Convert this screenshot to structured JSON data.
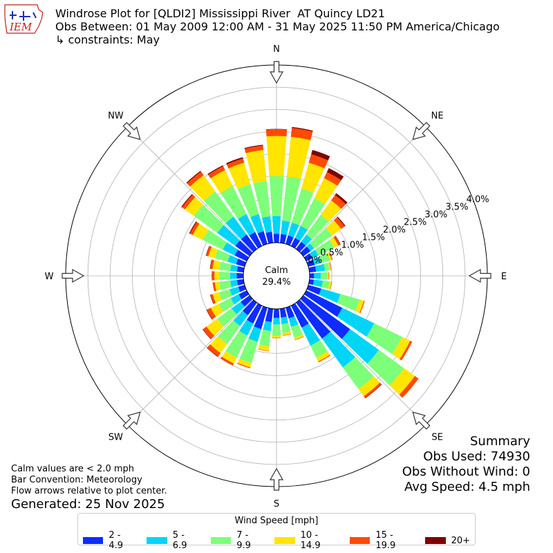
{
  "header": {
    "title": "Windrose Plot for [QLDI2] Mississippi River  AT Quincy LD21",
    "obs_between": "Obs Between: 01 May 2009 12:00 AM - 31 May 2025 11:50 PM America/Chicago",
    "constraints": "↳ constraints: May",
    "logo_text": "IEM"
  },
  "summary": {
    "title": "Summary",
    "obs_used": "Obs Used: 74930",
    "obs_without_wind": "Obs Without Wind: 0",
    "avg_speed": "Avg Speed: 4.5 mph"
  },
  "notes": {
    "calm_note": "Calm values are < 2.0 mph",
    "bar_convention": "Bar Convention: Meteorology",
    "flow_arrows": "Flow arrows relative to plot center.",
    "generated": "Generated: 25 Nov 2025"
  },
  "chart_data": {
    "type": "windrose",
    "calm_label": "Calm",
    "calm_value": "29.4%",
    "calm_percent": 29.4,
    "directions": [
      "N",
      "NE",
      "E",
      "SE",
      "S",
      "SW",
      "W",
      "NW"
    ],
    "radial_ticks": [
      "0.0%",
      "0.5%",
      "1.0%",
      "1.5%",
      "2.0%",
      "2.5%",
      "3.0%",
      "3.5%",
      "4.0%"
    ],
    "rmax": 4.0,
    "legend_title": "Wind Speed [mph]",
    "bins": [
      {
        "label": "2 - 4.9",
        "color": "#0d2cff"
      },
      {
        "label": "5 - 6.9",
        "color": "#00d5f7"
      },
      {
        "label": "7 - 9.9",
        "color": "#7dff7a"
      },
      {
        "label": "10 - 14.9",
        "color": "#ffe500"
      },
      {
        "label": "15 - 19.9",
        "color": "#ff4a00"
      },
      {
        "label": "20+",
        "color": "#7f0000"
      }
    ],
    "sectors": [
      {
        "direction": 0,
        "cumulative": [
          0.2,
          0.6,
          1.5,
          2.4,
          2.55,
          2.56
        ]
      },
      {
        "direction": 10,
        "cumulative": [
          0.2,
          0.5,
          1.5,
          2.4,
          2.6,
          2.62
        ]
      },
      {
        "direction": 20,
        "cumulative": [
          0.2,
          0.5,
          1.3,
          1.9,
          2.1,
          2.2
        ]
      },
      {
        "direction": 30,
        "cumulative": [
          0.2,
          0.5,
          1.2,
          1.7,
          1.85,
          1.95
        ]
      },
      {
        "direction": 40,
        "cumulative": [
          0.2,
          0.4,
          0.95,
          1.35,
          1.5,
          1.55
        ]
      },
      {
        "direction": 50,
        "cumulative": [
          0.2,
          0.3,
          0.8,
          1.05,
          1.15,
          1.17
        ]
      },
      {
        "direction": 60,
        "cumulative": [
          0.15,
          0.3,
          0.7,
          0.8,
          0.85,
          0.86
        ]
      },
      {
        "direction": 70,
        "cumulative": [
          0.15,
          0.3,
          0.5,
          0.55,
          0.57,
          0.57
        ]
      },
      {
        "direction": 80,
        "cumulative": [
          0.15,
          0.35,
          0.45,
          0.48,
          0.49,
          0.49
        ]
      },
      {
        "direction": 90,
        "cumulative": [
          0.1,
          0.25,
          0.4,
          0.43,
          0.44,
          0.44
        ]
      },
      {
        "direction": 100,
        "cumulative": [
          0.1,
          0.3,
          0.45,
          0.5,
          0.51,
          0.51
        ]
      },
      {
        "direction": 110,
        "cumulative": [
          0.3,
          0.75,
          1.2,
          1.3,
          1.32,
          1.32
        ]
      },
      {
        "direction": 120,
        "cumulative": [
          0.9,
          1.7,
          2.4,
          2.6,
          2.65,
          2.65
        ]
      },
      {
        "direction": 130,
        "cumulative": [
          1.3,
          2.1,
          2.8,
          3.1,
          3.2,
          3.2
        ]
      },
      {
        "direction": 140,
        "cumulative": [
          1.0,
          1.8,
          2.4,
          2.6,
          2.65,
          2.66
        ]
      },
      {
        "direction": 150,
        "cumulative": [
          0.55,
          1.0,
          1.3,
          1.4,
          1.42,
          1.42
        ]
      },
      {
        "direction": 160,
        "cumulative": [
          0.25,
          0.45,
          0.7,
          0.75,
          0.76,
          0.76
        ]
      },
      {
        "direction": 170,
        "cumulative": [
          0.2,
          0.35,
          0.55,
          0.6,
          0.61,
          0.61
        ]
      },
      {
        "direction": 180,
        "cumulative": [
          0.2,
          0.35,
          0.6,
          0.65,
          0.66,
          0.66
        ]
      },
      {
        "direction": 190,
        "cumulative": [
          0.3,
          0.5,
          0.85,
          0.95,
          0.96,
          0.96
        ]
      },
      {
        "direction": 200,
        "cumulative": [
          0.5,
          0.8,
          1.3,
          1.4,
          1.42,
          1.42
        ]
      },
      {
        "direction": 210,
        "cumulative": [
          0.45,
          0.75,
          1.3,
          1.45,
          1.5,
          1.5
        ]
      },
      {
        "direction": 220,
        "cumulative": [
          0.35,
          0.65,
          1.15,
          1.4,
          1.5,
          1.51
        ]
      },
      {
        "direction": 230,
        "cumulative": [
          0.25,
          0.5,
          0.9,
          1.2,
          1.3,
          1.31
        ]
      },
      {
        "direction": 240,
        "cumulative": [
          0.2,
          0.4,
          0.7,
          0.9,
          1.0,
          1.01
        ]
      },
      {
        "direction": 250,
        "cumulative": [
          0.15,
          0.35,
          0.6,
          0.75,
          0.8,
          0.81
        ]
      },
      {
        "direction": 260,
        "cumulative": [
          0.15,
          0.3,
          0.55,
          0.65,
          0.7,
          0.7
        ]
      },
      {
        "direction": 270,
        "cumulative": [
          0.15,
          0.3,
          0.55,
          0.65,
          0.7,
          0.71
        ]
      },
      {
        "direction": 280,
        "cumulative": [
          0.15,
          0.3,
          0.55,
          0.7,
          0.75,
          0.76
        ]
      },
      {
        "direction": 290,
        "cumulative": [
          0.2,
          0.4,
          0.7,
          0.85,
          0.9,
          0.91
        ]
      },
      {
        "direction": 300,
        "cumulative": [
          0.3,
          0.6,
          1.1,
          1.35,
          1.42,
          1.44
        ]
      },
      {
        "direction": 310,
        "cumulative": [
          0.4,
          0.9,
          1.55,
          1.8,
          1.88,
          1.9
        ]
      },
      {
        "direction": 320,
        "cumulative": [
          0.4,
          0.9,
          1.6,
          2.05,
          2.15,
          2.17
        ]
      },
      {
        "direction": 330,
        "cumulative": [
          0.35,
          0.8,
          1.5,
          1.9,
          2.0,
          2.02
        ]
      },
      {
        "direction": 340,
        "cumulative": [
          0.3,
          0.7,
          1.4,
          1.9,
          2.0,
          2.03
        ]
      },
      {
        "direction": 350,
        "cumulative": [
          0.25,
          0.6,
          1.4,
          2.1,
          2.2,
          2.22
        ]
      }
    ]
  }
}
